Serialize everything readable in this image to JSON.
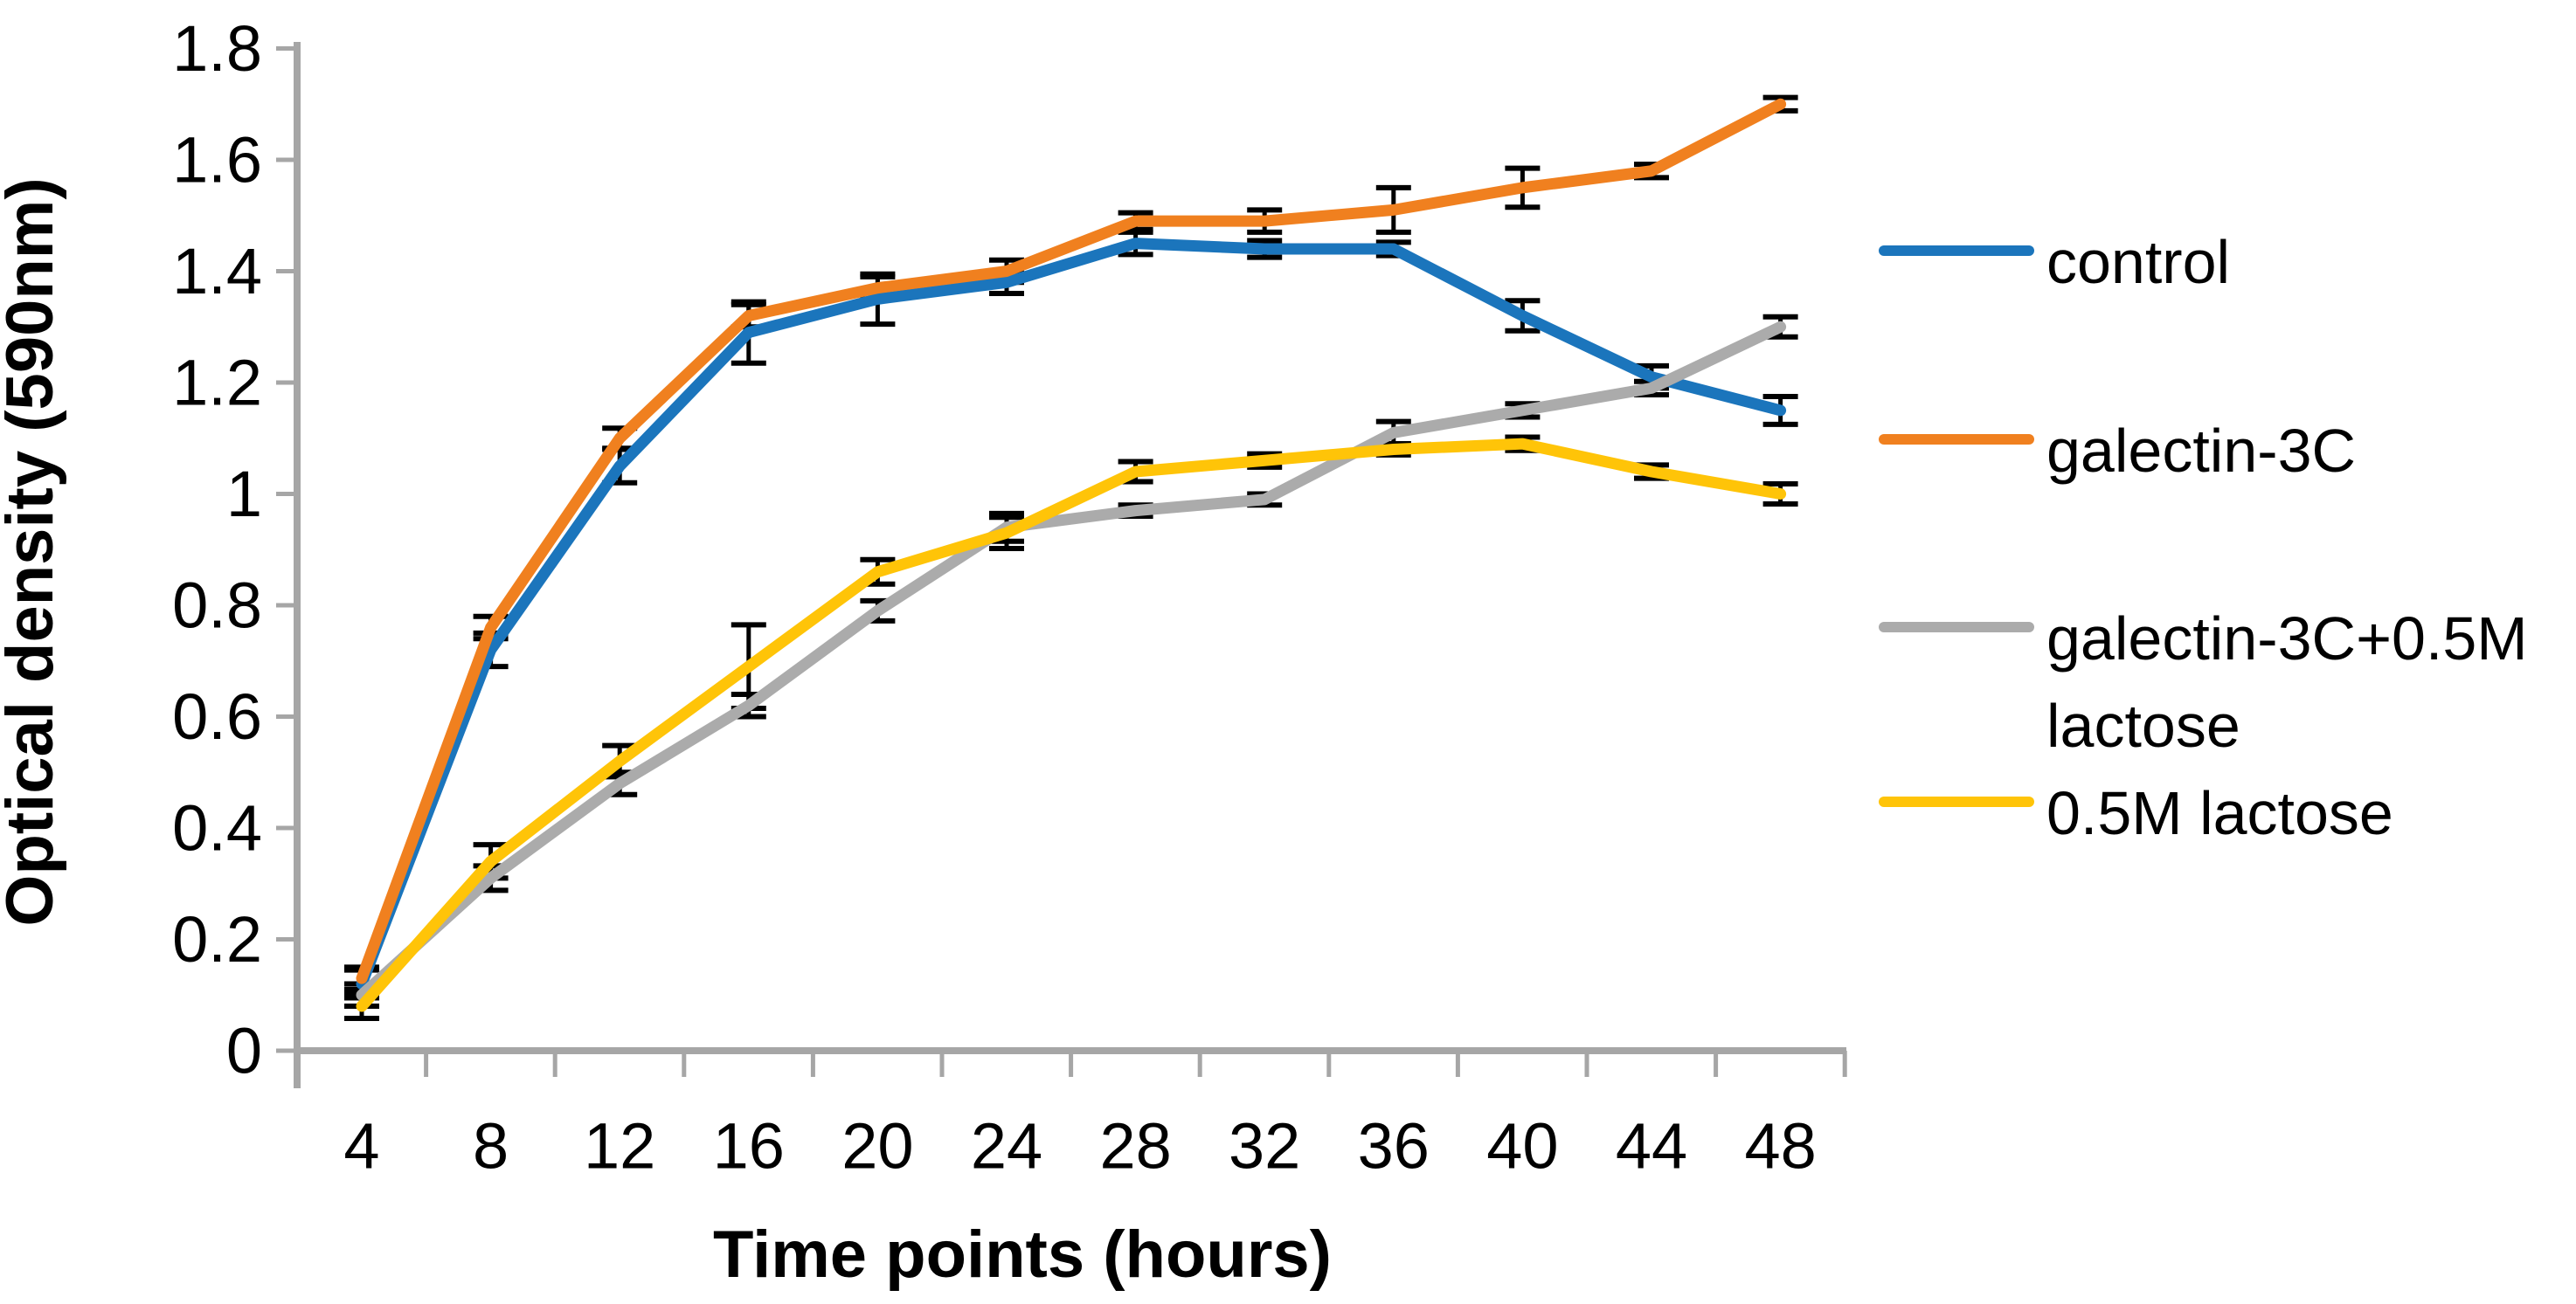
{
  "chart_data": {
    "type": "line",
    "title": "",
    "xlabel": "Time points (hours)",
    "ylabel": "Optical density (590nm)",
    "x": [
      4,
      8,
      12,
      16,
      20,
      24,
      28,
      32,
      36,
      40,
      44,
      48
    ],
    "x_tick_labels": [
      "4",
      "8",
      "12",
      "16",
      "20",
      "24",
      "28",
      "32",
      "36",
      "40",
      "44",
      "48"
    ],
    "y_ticks": [
      0,
      0.2,
      0.4,
      0.6,
      0.8,
      1.0,
      1.2,
      1.4,
      1.6,
      1.8
    ],
    "y_tick_labels": [
      "0",
      "0.2",
      "0.4",
      "0.6",
      "0.8",
      "1",
      "1.2",
      "1.4",
      "1.6",
      "1.8"
    ],
    "ylim": [
      0,
      1.8
    ],
    "grid": false,
    "legend_position": "right",
    "axis_color": "#A6A6A6",
    "error_bar_color": "#000000",
    "has_error_bars": true,
    "series": [
      {
        "name": "control",
        "color": "#1B75BC",
        "values": [
          0.12,
          0.72,
          1.05,
          1.29,
          1.35,
          1.38,
          1.45,
          1.44,
          1.44,
          1.32,
          1.21,
          1.15
        ],
        "errors": [
          0.025,
          0.03,
          0.03,
          0.055,
          0.045,
          0.02,
          0.02,
          0.015,
          0.012,
          0.027,
          0.02,
          0.025
        ]
      },
      {
        "name": "galectin-3C",
        "color": "#F0801F",
        "values": [
          0.13,
          0.76,
          1.1,
          1.32,
          1.37,
          1.4,
          1.49,
          1.49,
          1.51,
          1.55,
          1.58,
          1.7
        ],
        "errors": [
          0.02,
          0.02,
          0.018,
          0.02,
          0.02,
          0.02,
          0.015,
          0.02,
          0.04,
          0.035,
          0.012,
          0.012
        ]
      },
      {
        "name": "galectin-3C+0.5M lactose",
        "color": "#ABABAB",
        "values": [
          0.1,
          0.31,
          0.48,
          0.62,
          0.79,
          0.94,
          0.97,
          0.99,
          1.11,
          1.15,
          1.19,
          1.3
        ],
        "errors": [
          0.02,
          0.022,
          0.02,
          0.02,
          0.018,
          0.025,
          0.01,
          0.01,
          0.02,
          0.012,
          0.012,
          0.018
        ]
      },
      {
        "name": "0.5M lactose",
        "color": "#FFC408",
        "values": [
          0.08,
          0.34,
          0.52,
          0.69,
          0.86,
          0.93,
          1.04,
          1.06,
          1.08,
          1.09,
          1.04,
          1.0
        ],
        "errors": [
          0.022,
          0.03,
          0.028,
          0.075,
          0.022,
          0.028,
          0.018,
          0.012,
          0.01,
          0.012,
          0.012,
          0.018
        ]
      }
    ]
  }
}
